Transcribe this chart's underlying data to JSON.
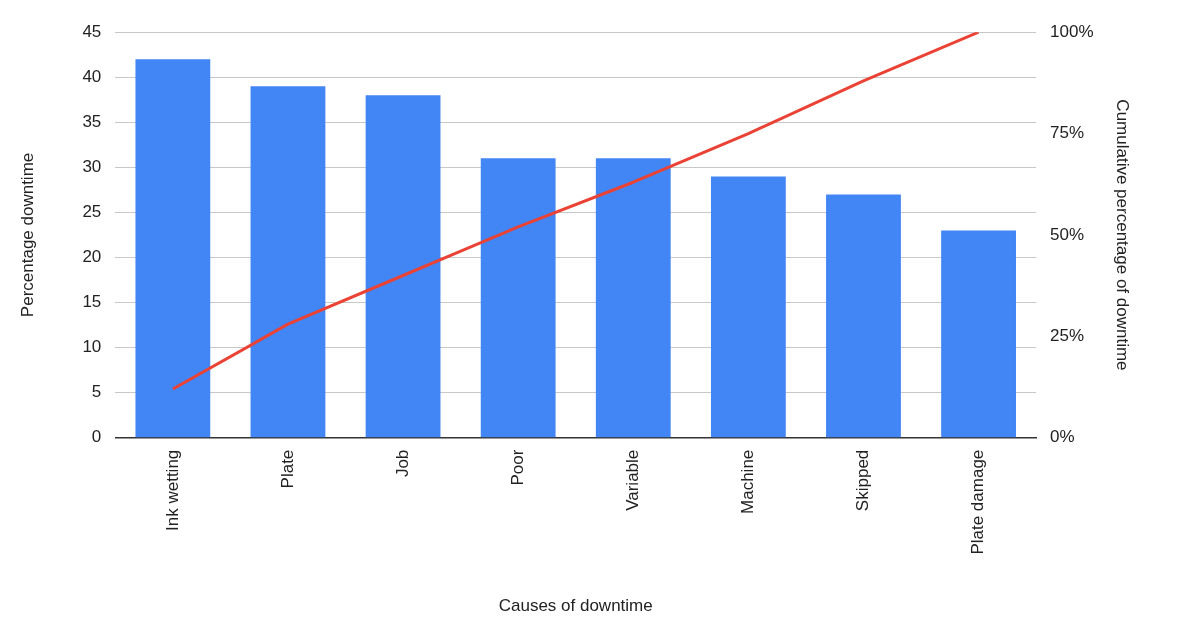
{
  "chart_data": {
    "type": "bar",
    "xlabel": "Causes of downtime",
    "ylabel": "Percentage downtime",
    "y2label": "Cumulative percentage of downtime",
    "categories": [
      "Ink wetting",
      "Plate",
      "Job",
      "Poor",
      "Variable",
      "Machine",
      "Skipped",
      "Plate damage"
    ],
    "series": [
      {
        "color": "#4285f4",
        "values": [
          42,
          39,
          38,
          31,
          31,
          29,
          27,
          23
        ]
      },
      {
        "type": "line",
        "axis": "y2",
        "color": "#ea4335",
        "values": [
          12,
          28,
          40,
          52,
          63,
          75,
          88,
          100
        ]
      }
    ],
    "ylim": [
      0,
      45
    ],
    "yticks": [
      0,
      5,
      10,
      15,
      20,
      25,
      30,
      35,
      40,
      45
    ],
    "y2lim": [
      0,
      100
    ],
    "y2ticks": [
      {
        "value": 0,
        "label": "0%"
      },
      {
        "value": 25,
        "label": "25%"
      },
      {
        "value": 50,
        "label": "50%"
      },
      {
        "value": 75,
        "label": "75%"
      },
      {
        "value": 100,
        "label": "100%"
      }
    ],
    "grid": "y",
    "legend": false,
    "marker": "none",
    "line_style": "solid"
  }
}
